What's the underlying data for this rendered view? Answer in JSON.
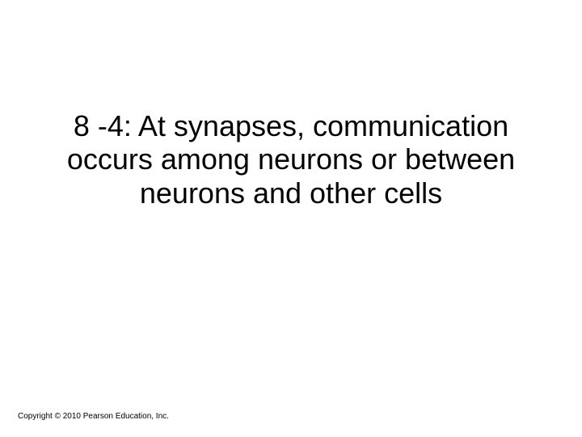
{
  "slide": {
    "title": "8 -4: At synapses, communication occurs among neurons or between neurons and other cells",
    "title_fontsize": 36,
    "title_color": "#000000",
    "title_align": "center",
    "background_color": "#ffffff"
  },
  "footer": {
    "copyright": "Copyright © 2010 Pearson Education, Inc.",
    "copyright_fontsize": 10,
    "copyright_color": "#000000"
  }
}
